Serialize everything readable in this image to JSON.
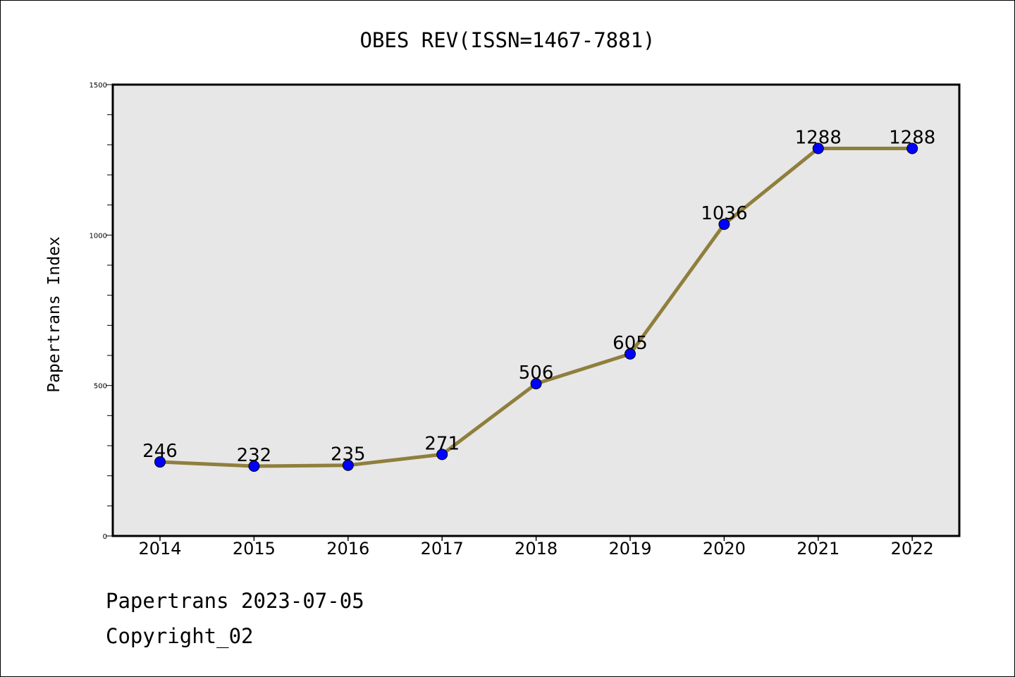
{
  "chart_data": {
    "type": "line",
    "title": "OBES REV(ISSN=1467-7881)",
    "xlabel": "",
    "ylabel": "Papertrans Index",
    "categories": [
      "2014",
      "2015",
      "2016",
      "2017",
      "2018",
      "2019",
      "2020",
      "2021",
      "2022"
    ],
    "series": [
      {
        "values": [
          246,
          232,
          235,
          271,
          506,
          605,
          1036,
          1288,
          1288
        ],
        "data_labels": [
          "246",
          "232",
          "235",
          "271",
          "506",
          "605",
          "1036",
          "1288",
          "1288"
        ]
      }
    ],
    "ylim": [
      0,
      1500
    ],
    "yticks_major": [
      0,
      500,
      1000,
      1500
    ],
    "ytick_labels": [
      "0",
      "500",
      "1000",
      "1500"
    ],
    "yticks_minor_step": 100,
    "grid": false,
    "colors": {
      "line": "#8F7F3D",
      "marker": "#0000FF",
      "plot_background": "#E7E7E7",
      "axes": "#000000"
    }
  },
  "footer": {
    "line1": "Papertrans 2023-07-05",
    "line2": "Copyright_02"
  }
}
